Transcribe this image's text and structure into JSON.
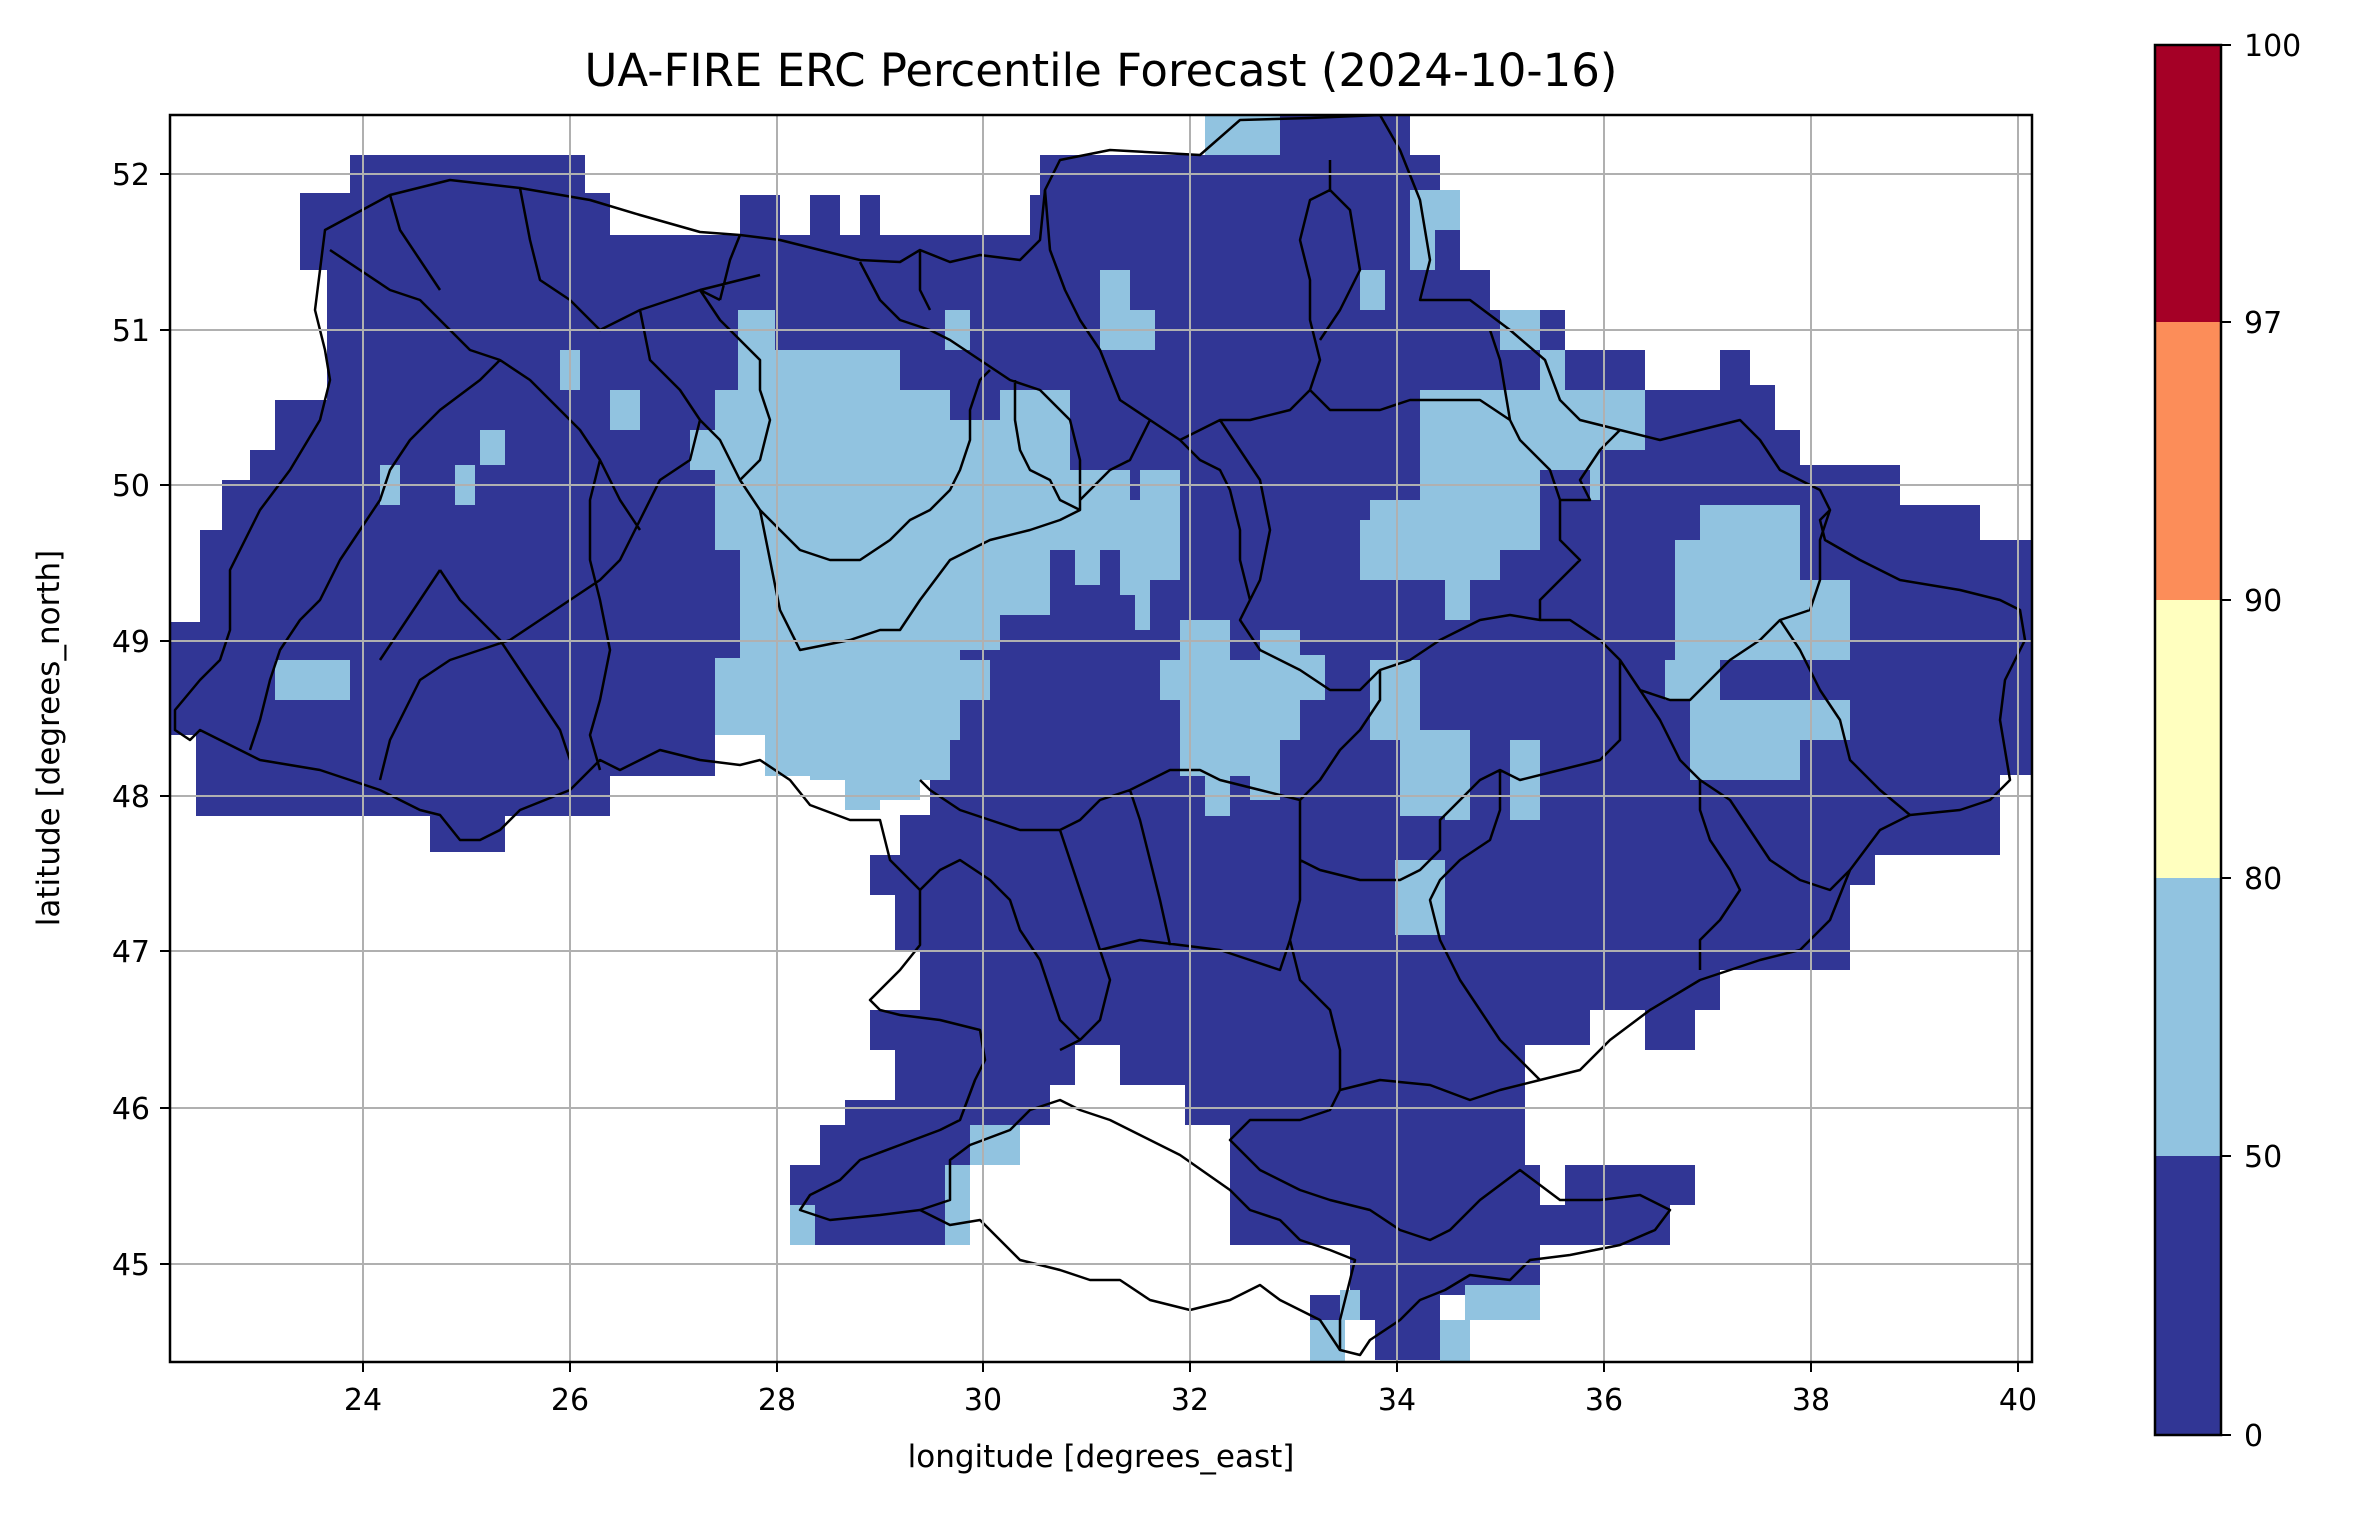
{
  "chart_data": {
    "type": "heatmap",
    "title": "UA-FIRE ERC Percentile Forecast (2024-10-16)",
    "xlabel": "longitude [degrees_east]",
    "ylabel": "latitude [degrees_north]",
    "xlim": [
      22.15,
      40.15
    ],
    "ylim": [
      44.35,
      52.4
    ],
    "xticks": [
      "24",
      "26",
      "28",
      "30",
      "32",
      "34",
      "36",
      "38",
      "40"
    ],
    "yticks": [
      "45",
      "46",
      "47",
      "48",
      "49",
      "50",
      "51",
      "52"
    ],
    "grid": true,
    "colorbar": {
      "ticks": [
        "0",
        "50",
        "80",
        "90",
        "97",
        "100"
      ],
      "bins": [
        {
          "range": [
            0,
            50
          ],
          "color": "#313695"
        },
        {
          "range": [
            50,
            80
          ],
          "color": "#91c3e0"
        },
        {
          "range": [
            80,
            90
          ],
          "color": "#ffffbf"
        },
        {
          "range": [
            90,
            97
          ],
          "color": "#fc8d59"
        },
        {
          "range": [
            97,
            100
          ],
          "color": "#a50026"
        }
      ]
    },
    "visible_bins": [
      "0-50",
      "50-80"
    ]
  }
}
